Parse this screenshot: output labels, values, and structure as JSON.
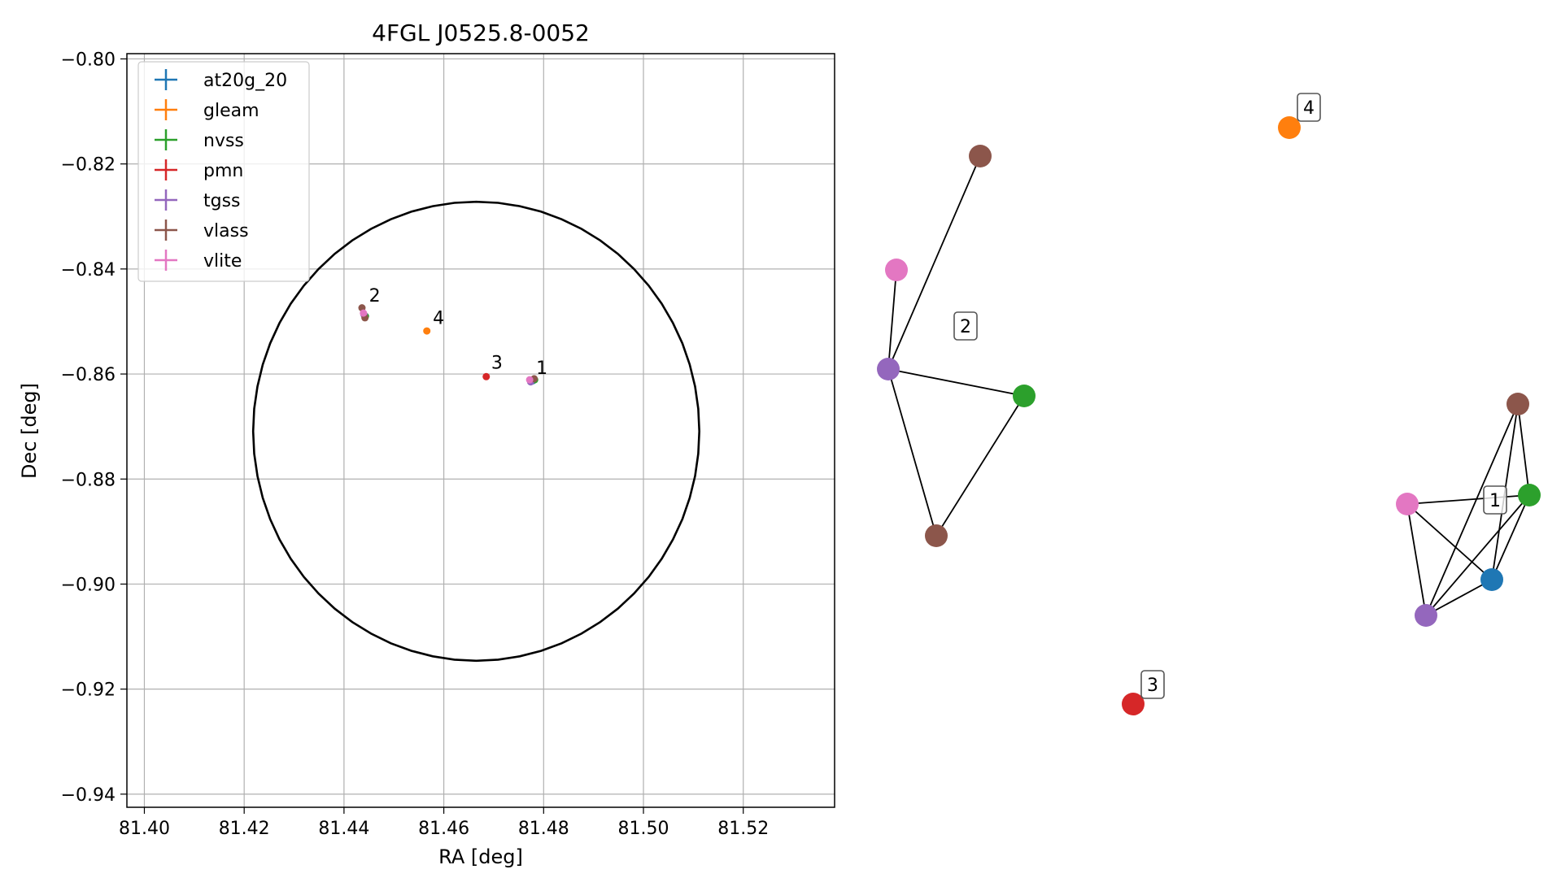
{
  "chart_data": [
    {
      "type": "scatter",
      "title": "4FGL J0525.8-0052",
      "xlabel": "RA [deg]",
      "ylabel": "Dec [deg]",
      "xlim": [
        81.3965,
        81.5383
      ],
      "ylim": [
        -0.9425,
        -0.799
      ],
      "x_ticks": [
        81.4,
        81.42,
        81.44,
        81.46,
        81.48,
        81.5,
        81.52
      ],
      "x_tick_labels": [
        "81.40",
        "81.42",
        "81.44",
        "81.46",
        "81.48",
        "81.50",
        "81.52"
      ],
      "y_ticks": [
        -0.8,
        -0.82,
        -0.84,
        -0.86,
        -0.88,
        -0.9,
        -0.92,
        -0.94
      ],
      "y_tick_labels": [
        "−0.80",
        "−0.82",
        "−0.84",
        "−0.86",
        "−0.88",
        "−0.90",
        "−0.92",
        "−0.94"
      ],
      "grid": true,
      "legend_position": "top-left",
      "ellipse": {
        "center": [
          81.4665,
          -0.8709
        ],
        "semi_axis_ra": 0.0447,
        "semi_axis_dec": 0.0437,
        "color": "#000000"
      },
      "series": [
        {
          "name": "at20g_20",
          "color": "#1f77b4",
          "points": [
            [
              81.4778,
              -0.8613
            ]
          ]
        },
        {
          "name": "gleam",
          "color": "#ff7f0e",
          "points": [
            [
              81.4566,
              -0.8518
            ]
          ]
        },
        {
          "name": "nvss",
          "color": "#2ca02c",
          "points": [
            [
              81.4782,
              -0.8611
            ],
            [
              81.4443,
              -0.849
            ]
          ]
        },
        {
          "name": "pmn",
          "color": "#d62728",
          "points": [
            [
              81.4685,
              -0.8605
            ]
          ]
        },
        {
          "name": "tgss",
          "color": "#9467bd",
          "points": [
            [
              81.4774,
              -0.8615
            ],
            [
              81.444,
              -0.8487
            ]
          ]
        },
        {
          "name": "vlass",
          "color": "#8c564b",
          "points": [
            [
              81.4781,
              -0.8609
            ],
            [
              81.4436,
              -0.8474
            ],
            [
              81.4442,
              -0.8493
            ]
          ]
        },
        {
          "name": "vlite",
          "color": "#e377c2",
          "points": [
            [
              81.4772,
              -0.8611
            ],
            [
              81.4439,
              -0.8484
            ]
          ]
        }
      ],
      "annotations": [
        {
          "text": "1",
          "x": 81.4785,
          "y": -0.86
        },
        {
          "text": "2",
          "x": 81.445,
          "y": -0.8462
        },
        {
          "text": "3",
          "x": 81.4695,
          "y": -0.859
        },
        {
          "text": "4",
          "x": 81.4578,
          "y": -0.8505
        }
      ]
    },
    {
      "type": "network",
      "nodes": [
        {
          "id": "n1",
          "cluster": "2",
          "source": "vlass",
          "color": "#8c564b"
        },
        {
          "id": "n2",
          "cluster": "2",
          "source": "vlite",
          "color": "#e377c2"
        },
        {
          "id": "n3",
          "cluster": "2",
          "source": "tgss",
          "color": "#9467bd"
        },
        {
          "id": "n4",
          "cluster": "2",
          "source": "nvss",
          "color": "#2ca02c"
        },
        {
          "id": "n5",
          "cluster": "2",
          "source": "vlass",
          "color": "#8c564b"
        },
        {
          "id": "n6",
          "cluster": "4",
          "source": "gleam",
          "color": "#ff7f0e"
        },
        {
          "id": "n7",
          "cluster": "3",
          "source": "pmn",
          "color": "#d62728"
        },
        {
          "id": "n8",
          "cluster": "1",
          "source": "vlass",
          "color": "#8c564b"
        },
        {
          "id": "n9",
          "cluster": "1",
          "source": "vlite",
          "color": "#e377c2"
        },
        {
          "id": "n10",
          "cluster": "1",
          "source": "nvss",
          "color": "#2ca02c"
        },
        {
          "id": "n11",
          "cluster": "1",
          "source": "at20g_20",
          "color": "#1f77b4"
        },
        {
          "id": "n12",
          "cluster": "1",
          "source": "tgss",
          "color": "#9467bd"
        }
      ],
      "edges": [
        [
          "n3",
          "n1"
        ],
        [
          "n3",
          "n2"
        ],
        [
          "n3",
          "n4"
        ],
        [
          "n3",
          "n5"
        ],
        [
          "n4",
          "n5"
        ],
        [
          "n8",
          "n10"
        ],
        [
          "n8",
          "n11"
        ],
        [
          "n8",
          "n12"
        ],
        [
          "n9",
          "n10"
        ],
        [
          "n9",
          "n11"
        ],
        [
          "n9",
          "n12"
        ],
        [
          "n10",
          "n11"
        ],
        [
          "n10",
          "n12"
        ],
        [
          "n11",
          "n12"
        ]
      ],
      "cluster_labels": [
        "1",
        "2",
        "3",
        "4"
      ]
    }
  ]
}
